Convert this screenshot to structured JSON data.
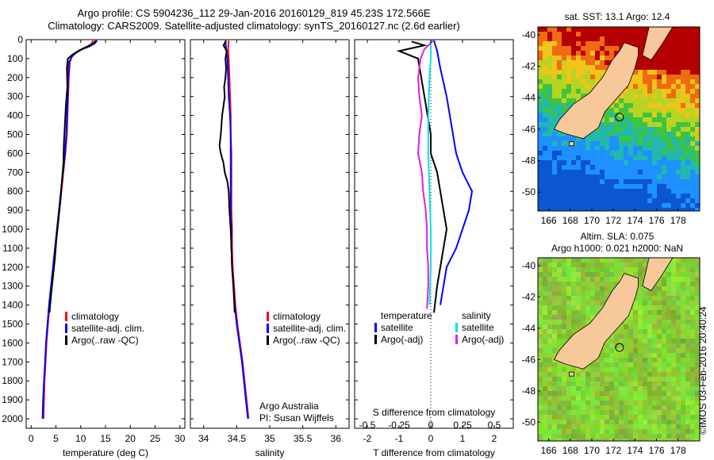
{
  "header": {
    "line1": "Argo profile: CS 5904236_112 29-Jan-2016 20160129_819 45.23S 172.566E",
    "line2": "Climatology: CARS2009. Satellite-adjusted climatology: synTS_20160127.nc (2.6d earlier)"
  },
  "colors": {
    "climatology": "#ff0000",
    "satellite": "#0000ff",
    "argo": "#000000",
    "sal_satellite": "#00e5e5",
    "sal_argo": "#e020e0"
  },
  "depth_ticks": [
    "0",
    "100",
    "200",
    "300",
    "400",
    "500",
    "600",
    "700",
    "800",
    "900",
    "1000",
    "1100",
    "1200",
    "1300",
    "1400",
    "1500",
    "1600",
    "1700",
    "1800",
    "1900",
    "2000"
  ],
  "chart_data": [
    {
      "type": "line",
      "id": "temperature_profile",
      "xlabel": "temperature (deg C)",
      "xlim": [
        -1,
        31
      ],
      "ylim": [
        0,
        2050
      ],
      "yreversed": true,
      "xticks": [
        "0",
        "5",
        "10",
        "15",
        "20",
        "25",
        "30"
      ],
      "legend": {
        "items": [
          "climatology",
          "satellite-adj. clim.",
          "Argo(..raw -QC)"
        ]
      },
      "series": [
        {
          "name": "climatology",
          "color": "#ff0000",
          "points": [
            [
              12.5,
              5
            ],
            [
              12.2,
              20
            ],
            [
              11.5,
              35
            ],
            [
              10.2,
              50
            ],
            [
              9.0,
              70
            ],
            [
              8.2,
              90
            ],
            [
              7.8,
              120
            ],
            [
              7.6,
              200
            ],
            [
              7.4,
              350
            ],
            [
              7.2,
              500
            ],
            [
              6.9,
              600
            ],
            [
              6.5,
              700
            ],
            [
              6.1,
              800
            ],
            [
              5.7,
              900
            ],
            [
              5.3,
              1000
            ],
            [
              4.9,
              1100
            ],
            [
              4.5,
              1200
            ],
            [
              4.1,
              1300
            ],
            [
              3.7,
              1400
            ],
            [
              3.4,
              1500
            ],
            [
              3.1,
              1600
            ],
            [
              2.9,
              1700
            ],
            [
              2.7,
              1800
            ],
            [
              2.6,
              1900
            ],
            [
              2.5,
              2000
            ]
          ]
        },
        {
          "name": "satellite-adj. clim.",
          "color": "#0000ff",
          "points": [
            [
              13.3,
              5
            ],
            [
              12.8,
              20
            ],
            [
              11.8,
              35
            ],
            [
              10.3,
              50
            ],
            [
              9.0,
              70
            ],
            [
              8.2,
              90
            ],
            [
              7.6,
              120
            ],
            [
              7.5,
              200
            ],
            [
              7.3,
              350
            ],
            [
              7.1,
              500
            ],
            [
              6.8,
              600
            ],
            [
              6.4,
              700
            ],
            [
              6.0,
              800
            ],
            [
              5.6,
              900
            ],
            [
              5.2,
              1000
            ],
            [
              4.8,
              1100
            ],
            [
              4.4,
              1200
            ],
            [
              4.0,
              1300
            ],
            [
              3.6,
              1400
            ],
            [
              3.3,
              1500
            ],
            [
              3.0,
              1600
            ],
            [
              2.8,
              1700
            ],
            [
              2.6,
              1800
            ],
            [
              2.4,
              1900
            ],
            [
              2.3,
              2000
            ]
          ]
        },
        {
          "name": "Argo(..raw -QC)",
          "color": "#000000",
          "points": [
            [
              13.0,
              5
            ],
            [
              12.6,
              20
            ],
            [
              11.0,
              40
            ],
            [
              9.5,
              60
            ],
            [
              8.3,
              80
            ],
            [
              7.4,
              100
            ],
            [
              7.2,
              150
            ],
            [
              7.3,
              250
            ],
            [
              7.0,
              350
            ],
            [
              6.8,
              450
            ],
            [
              6.6,
              550
            ],
            [
              6.5,
              650
            ],
            [
              6.2,
              750
            ],
            [
              5.9,
              850
            ],
            [
              5.5,
              950
            ],
            [
              5.1,
              1050
            ],
            [
              4.8,
              1150
            ],
            [
              4.4,
              1250
            ],
            [
              4.0,
              1350
            ],
            [
              3.7,
              1440
            ]
          ]
        }
      ]
    },
    {
      "type": "line",
      "id": "salinity_profile",
      "xlabel": "salinity",
      "xlim": [
        33.8,
        36.2
      ],
      "ylim": [
        0,
        2050
      ],
      "yreversed": true,
      "xticks": [
        "34",
        "34.5",
        "35",
        "35.5",
        "36"
      ],
      "legend": {
        "items": [
          "climatology",
          "satellite-adj. clim.",
          "Argo(..raw -QC)"
        ]
      },
      "annotations": [
        "Argo Australia",
        "PI: Susan Wijffels"
      ],
      "series": [
        {
          "name": "climatology",
          "color": "#ff0000",
          "points": [
            [
              34.38,
              5
            ],
            [
              34.37,
              50
            ],
            [
              34.38,
              100
            ],
            [
              34.39,
              200
            ],
            [
              34.4,
              300
            ],
            [
              34.41,
              400
            ],
            [
              34.41,
              500
            ],
            [
              34.42,
              600
            ],
            [
              34.42,
              700
            ],
            [
              34.42,
              800
            ],
            [
              34.42,
              900
            ],
            [
              34.43,
              1000
            ],
            [
              34.43,
              1100
            ],
            [
              34.44,
              1200
            ],
            [
              34.46,
              1300
            ],
            [
              34.48,
              1400
            ],
            [
              34.51,
              1500
            ],
            [
              34.55,
              1600
            ],
            [
              34.59,
              1700
            ],
            [
              34.62,
              1800
            ],
            [
              34.65,
              1900
            ],
            [
              34.68,
              2000
            ]
          ]
        },
        {
          "name": "satellite-adj. clim.",
          "color": "#0000ff",
          "points": [
            [
              34.33,
              5
            ],
            [
              34.34,
              50
            ],
            [
              34.36,
              100
            ],
            [
              34.37,
              200
            ],
            [
              34.38,
              300
            ],
            [
              34.4,
              400
            ],
            [
              34.41,
              500
            ],
            [
              34.41,
              600
            ],
            [
              34.41,
              700
            ],
            [
              34.41,
              800
            ],
            [
              34.41,
              900
            ],
            [
              34.42,
              1000
            ],
            [
              34.42,
              1100
            ],
            [
              34.43,
              1200
            ],
            [
              34.45,
              1300
            ],
            [
              34.47,
              1400
            ],
            [
              34.5,
              1500
            ],
            [
              34.54,
              1600
            ],
            [
              34.58,
              1700
            ],
            [
              34.61,
              1800
            ],
            [
              34.64,
              1900
            ],
            [
              34.67,
              2000
            ]
          ]
        },
        {
          "name": "Argo(..raw -QC)",
          "color": "#000000",
          "points": [
            [
              34.34,
              5
            ],
            [
              34.3,
              30
            ],
            [
              34.35,
              60
            ],
            [
              34.33,
              100
            ],
            [
              34.34,
              150
            ],
            [
              34.33,
              200
            ],
            [
              34.31,
              250
            ],
            [
              34.32,
              300
            ],
            [
              34.3,
              350
            ],
            [
              34.28,
              400
            ],
            [
              34.27,
              450
            ],
            [
              34.26,
              500
            ],
            [
              34.24,
              560
            ],
            [
              34.26,
              600
            ],
            [
              34.3,
              650
            ],
            [
              34.32,
              700
            ],
            [
              34.36,
              750
            ],
            [
              34.38,
              800
            ],
            [
              34.39,
              900
            ],
            [
              34.41,
              1000
            ],
            [
              34.42,
              1100
            ],
            [
              34.43,
              1200
            ],
            [
              34.45,
              1300
            ],
            [
              34.47,
              1440
            ]
          ]
        }
      ]
    },
    {
      "type": "line",
      "id": "difference_profile",
      "xlabel": "T difference from climatology",
      "xlabel_top": "S difference from climatology",
      "xlim": [
        -2.4,
        2.6
      ],
      "ylim": [
        0,
        2050
      ],
      "yreversed": true,
      "xticks": [
        "-2",
        "-1",
        "0",
        "1",
        "2"
      ],
      "xticks_salinity": [
        "-0.5",
        "-0.25",
        "0",
        "0.25",
        "0.5"
      ],
      "legend": {
        "temperature_title": "temperature",
        "salinity_title": "salinity",
        "items": [
          "satellite",
          "Argo(-adj)",
          "satellite",
          "Argo(-adj)"
        ]
      },
      "series": [
        {
          "name": "temperature satellite",
          "color": "#0000ff",
          "points": [
            [
              0.1,
              5
            ],
            [
              0.2,
              60
            ],
            [
              0.3,
              150
            ],
            [
              0.5,
              300
            ],
            [
              0.7,
              500
            ],
            [
              0.8,
              600
            ],
            [
              1.0,
              700
            ],
            [
              1.3,
              800
            ],
            [
              1.2,
              900
            ],
            [
              1.0,
              1000
            ],
            [
              0.8,
              1100
            ],
            [
              0.5,
              1200
            ],
            [
              0.4,
              1300
            ],
            [
              0.3,
              1400
            ]
          ]
        },
        {
          "name": "temperature Argo(-adj)",
          "color": "#000000",
          "points": [
            [
              -0.6,
              10
            ],
            [
              -0.2,
              30
            ],
            [
              -1.0,
              60
            ],
            [
              -0.4,
              100
            ],
            [
              -0.3,
              200
            ],
            [
              -0.2,
              300
            ],
            [
              -0.1,
              400
            ],
            [
              0.0,
              500
            ],
            [
              0.0,
              600
            ],
            [
              0.2,
              700
            ],
            [
              0.3,
              800
            ],
            [
              0.4,
              900
            ],
            [
              0.5,
              1000
            ],
            [
              0.4,
              1100
            ],
            [
              0.3,
              1200
            ],
            [
              0.2,
              1300
            ],
            [
              0.1,
              1440
            ]
          ]
        },
        {
          "name": "salinity satellite",
          "color": "#00e5e5",
          "points": [
            [
              0.0,
              5
            ],
            [
              0.0,
              100
            ],
            [
              -0.01,
              200
            ],
            [
              -0.02,
              400
            ],
            [
              -0.02,
              600
            ],
            [
              -0.01,
              800
            ],
            [
              0.0,
              1000
            ],
            [
              0.0,
              1200
            ],
            [
              -0.01,
              1400
            ]
          ]
        },
        {
          "name": "salinity Argo(-adj)",
          "color": "#e020e0",
          "points": [
            [
              0.02,
              5
            ],
            [
              -0.05,
              50
            ],
            [
              -0.08,
              100
            ],
            [
              -0.1,
              200
            ],
            [
              -0.09,
              300
            ],
            [
              -0.07,
              400
            ],
            [
              -0.09,
              500
            ],
            [
              -0.1,
              600
            ],
            [
              -0.07,
              700
            ],
            [
              -0.06,
              800
            ],
            [
              -0.04,
              900
            ],
            [
              -0.03,
              1000
            ],
            [
              -0.03,
              1100
            ],
            [
              -0.02,
              1200
            ],
            [
              -0.02,
              1300
            ],
            [
              -0.03,
              1420
            ]
          ]
        }
      ]
    },
    {
      "type": "heatmap",
      "id": "sst_map",
      "title": "sat. SST: 13.1 Argo: 12.4",
      "xlim": [
        165,
        180
      ],
      "ylim": [
        -51.2,
        -39.5
      ],
      "xticks": [
        "166",
        "168",
        "170",
        "172",
        "174",
        "176",
        "178"
      ],
      "yticks": [
        "-40",
        "-42",
        "-44",
        "-46",
        "-48",
        "-50"
      ]
    },
    {
      "type": "heatmap",
      "id": "sla_map",
      "title": "Altim. SLA: 0.075",
      "subtitle": "Argo h1000: 0.021 h2000: NaN",
      "xlim": [
        165,
        180
      ],
      "ylim": [
        -51.2,
        -39.5
      ],
      "xticks": [
        "166",
        "168",
        "170",
        "172",
        "174",
        "176",
        "178"
      ],
      "yticks": [
        "-40",
        "-42",
        "-44",
        "-46",
        "-48",
        "-50"
      ]
    }
  ],
  "credit": "©IMOS 03-Feb-2016 20:40:24"
}
